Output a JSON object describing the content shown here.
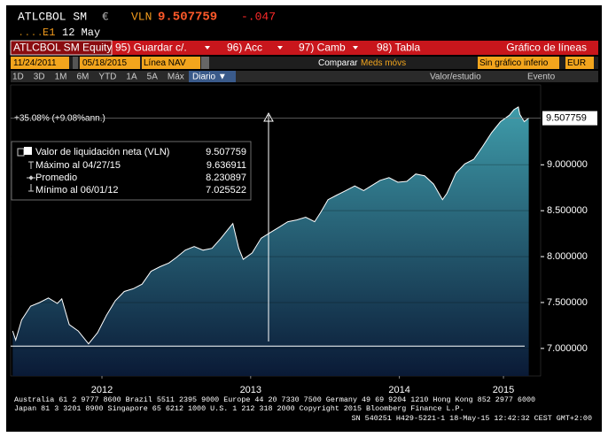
{
  "header": {
    "ticker": "ATLCBOL SM",
    "currency": "€",
    "field": "VLN",
    "price": "9.507759",
    "change": "-.047",
    "dots": ".....",
    "source": "E1",
    "date": "12 May"
  },
  "toolbar": {
    "security": "ATLCBOL SM Equity",
    "actions": [
      "95) Guardar c/.",
      "96) Acc",
      "97) Camb",
      "98) Tabla"
    ],
    "view": "Gráfico de líneas"
  },
  "range": {
    "start": "11/24/2011",
    "end": "05/18/2015",
    "field": "Línea NAV",
    "compare": "Comparar",
    "moving": "Meds móvs",
    "lower": "Sin gráfico inferio",
    "currency": "EUR"
  },
  "periods": [
    "1D",
    "3D",
    "1M",
    "6M",
    "YTD",
    "1A",
    "5A",
    "Máx"
  ],
  "frequency": "Diario ▼",
  "study": "Valor/estudio",
  "event": "Evento",
  "chart_data": {
    "type": "area",
    "annotation": "+35.08% (+9.08%ann.)",
    "x": [
      2011.9,
      2011.92,
      2011.96,
      2012.02,
      2012.08,
      2012.14,
      2012.2,
      2012.23,
      2012.28,
      2012.34,
      2012.41,
      2012.47,
      2012.53,
      2012.59,
      2012.65,
      2012.71,
      2012.77,
      2012.83,
      2012.89,
      2012.95,
      2013.0,
      2013.06,
      2013.12,
      2013.18,
      2013.24,
      2013.3,
      2013.35,
      2013.38,
      2013.42,
      2013.45,
      2013.51,
      2013.57,
      2013.63,
      2013.69,
      2013.75,
      2013.81,
      2013.87,
      2013.93,
      2013.97,
      2014.02,
      2014.08,
      2014.14,
      2014.2,
      2014.26,
      2014.31,
      2014.37,
      2014.43,
      2014.49,
      2014.55,
      2014.61,
      2014.67,
      2014.73,
      2014.79,
      2014.82,
      2014.88,
      2014.94,
      2015.0,
      2015.06,
      2015.12,
      2015.18,
      2015.24,
      2015.27,
      2015.3,
      2015.31,
      2015.34,
      2015.37
    ],
    "series": [
      {
        "name": "Valor de liquidación neta (VLN)",
        "color": "#ffffff",
        "fill_top": "#3f9caa",
        "fill_bottom": "#0a1a36",
        "values": [
          7.19,
          7.09,
          7.31,
          7.46,
          7.5,
          7.55,
          7.49,
          7.54,
          7.26,
          7.19,
          7.05,
          7.17,
          7.36,
          7.52,
          7.62,
          7.65,
          7.7,
          7.84,
          7.89,
          7.93,
          7.99,
          8.07,
          8.11,
          8.07,
          8.09,
          8.2,
          8.3,
          8.36,
          8.09,
          7.97,
          8.04,
          8.2,
          8.26,
          8.32,
          8.38,
          8.4,
          8.43,
          8.38,
          8.48,
          8.62,
          8.67,
          8.72,
          8.77,
          8.72,
          8.77,
          8.83,
          8.86,
          8.81,
          8.82,
          8.9,
          8.88,
          8.79,
          8.62,
          8.69,
          8.91,
          9.01,
          9.06,
          9.2,
          9.35,
          9.47,
          9.54,
          9.6,
          9.63,
          9.55,
          9.47,
          9.51
        ]
      }
    ],
    "last_value": 9.507759,
    "stats": [
      {
        "label": "Máximo al 04/27/15",
        "value": 9.636911
      },
      {
        "label": "Promedio",
        "value": 8.230897
      },
      {
        "label": "Mínimo al 06/01/12",
        "value": 7.025522
      }
    ],
    "xlim": [
      2011.886,
      2015.45
    ],
    "ylim": [
      6.7,
      9.87
    ],
    "xticks": [
      {
        "value": 2012.5,
        "label": "2012"
      },
      {
        "value": 2013.5,
        "label": "2013"
      },
      {
        "value": 2014.5,
        "label": "2014"
      },
      {
        "value": 2015.2,
        "label": "2015"
      }
    ],
    "yticks": [
      {
        "value": 7,
        "label": "7.000000"
      },
      {
        "value": 7.5,
        "label": "7.500000"
      },
      {
        "value": 8,
        "label": "8.000000"
      },
      {
        "value": 8.5,
        "label": "8.500000"
      },
      {
        "value": 9,
        "label": "9.000000"
      }
    ],
    "grid": true
  },
  "footer": [
    "Australia 61 2 9777 8600 Brazil 5511 2395 9000 Europe 44 20 7330 7500 Germany 49 69 9204 1210 Hong Kong 852 2977 6000",
    "Japan 81 3 3201 8900      Singapore 65 6212 1000      U.S. 1 212 318 2000         Copyright 2015 Bloomberg Finance L.P.",
    "SN 540251 H429-5221-1 18-May-15 12:42:32 CEST GMT+2:00"
  ]
}
